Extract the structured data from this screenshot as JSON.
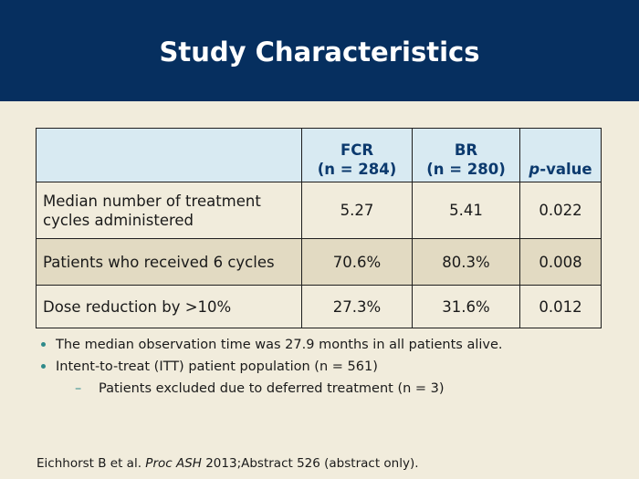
{
  "slide": {
    "title": "Study Characteristics"
  },
  "table": {
    "header": {
      "col1_line1": "FCR",
      "col1_line2": "(n = 284)",
      "col2_line1": "BR",
      "col2_line2": "(n = 280)",
      "col3_italic": "p",
      "col3_rest": "-value"
    },
    "rows": [
      {
        "label": "Median number of treatment cycles administered",
        "fcr": "5.27",
        "br": "5.41",
        "p": "0.022"
      },
      {
        "label": "Patients who received 6 cycles",
        "fcr": "70.6%",
        "br": "80.3%",
        "p": "0.008"
      },
      {
        "label": "Dose reduction by >10%",
        "fcr": "27.3%",
        "br": "31.6%",
        "p": "0.012"
      }
    ]
  },
  "bullets": {
    "b1": "The median observation time was 27.9 months in all patients alive.",
    "b2": "Intent-to-treat (ITT) patient population (n = 561)",
    "sub1": "Patients excluded due to deferred treatment (n = 3)",
    "dash": "–"
  },
  "citation": {
    "authors": "Eichhorst B et al. ",
    "journal": "Proc ASH",
    "rest": " 2013;Abstract 526 (abstract only)."
  },
  "colors": {
    "title_bar": "#062f5f",
    "background": "#f1ecdc",
    "header_fill": "#d8eaf2",
    "shaded_row": "#e2dac2",
    "bullet_accent": "#2f8a8a"
  }
}
